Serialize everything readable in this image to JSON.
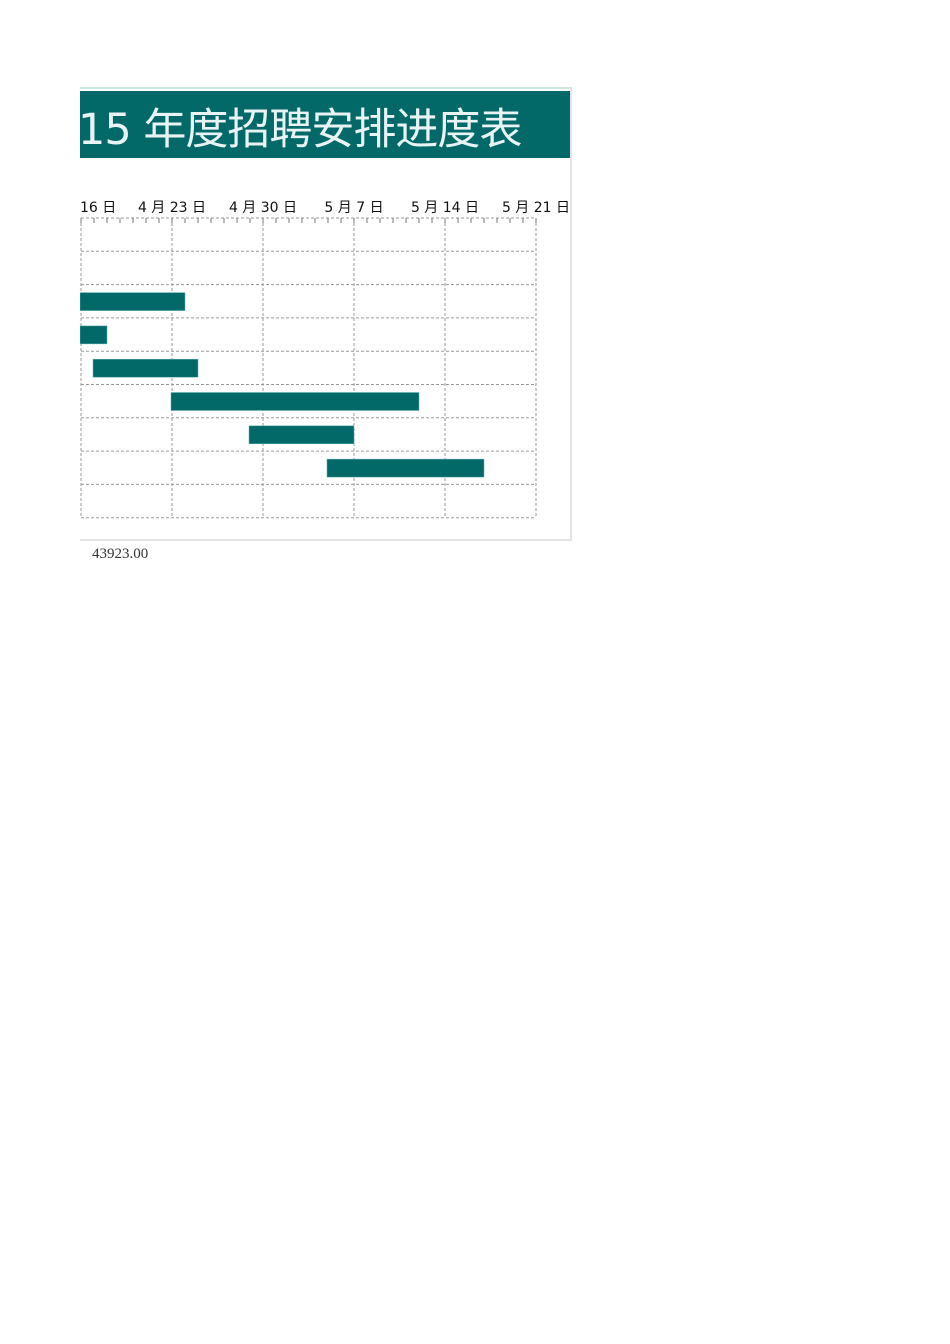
{
  "title": "15 年度招聘安排进度表",
  "footer_value": "43923.00",
  "colors": {
    "accent": "#036868",
    "grid": "#9a9a9a"
  },
  "chart_data": {
    "type": "gantt",
    "orientation": "horizontal-bar",
    "x_axis": {
      "position": "top",
      "range": [
        "2015-04-16",
        "2015-05-21"
      ],
      "tick_labels": [
        "16 日",
        "4 月 23 日",
        "4 月 30 日",
        "5 月 7 日",
        "5 月 14 日",
        "5 月 21 日"
      ],
      "tick_dates": [
        "2015-04-16",
        "2015-04-23",
        "2015-04-30",
        "2015-05-07",
        "2015-05-14",
        "2015-05-21"
      ],
      "minor_ticks": "daily"
    },
    "grid": {
      "vertical": true,
      "horizontal": true,
      "style": "dashed"
    },
    "rows": 9,
    "tasks": [
      {
        "row": 2,
        "start": "2015-04-16",
        "end": "2015-04-24"
      },
      {
        "row": 3,
        "start": "2015-04-16",
        "end": "2015-04-18"
      },
      {
        "row": 4,
        "start": "2015-04-17",
        "end": "2015-04-25"
      },
      {
        "row": 5,
        "start": "2015-04-23",
        "end": "2015-05-12"
      },
      {
        "row": 6,
        "start": "2015-04-29",
        "end": "2015-05-07"
      },
      {
        "row": 7,
        "start": "2015-05-05",
        "end": "2015-05-17"
      }
    ]
  }
}
